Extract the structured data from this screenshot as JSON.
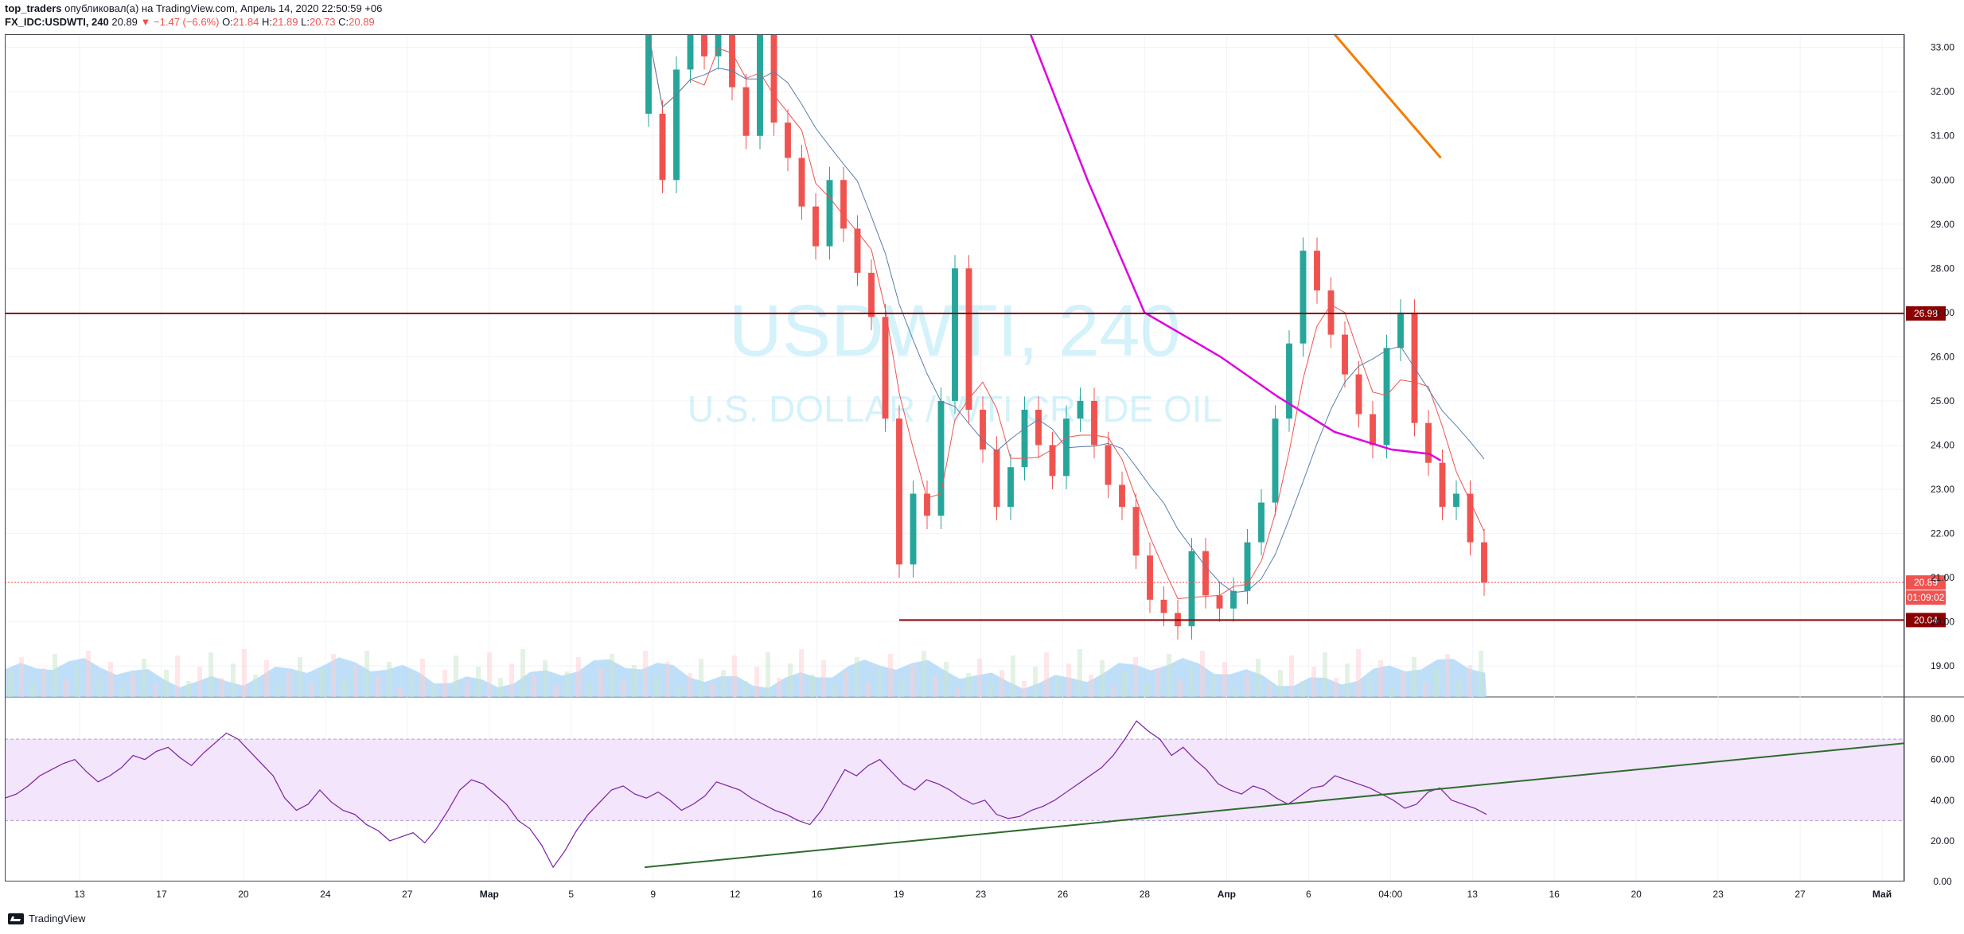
{
  "header": {
    "author": "top_traders",
    "published": "опубликовал(а) на TradingView.com, Апрель 14, 2020 22:50:59 +06",
    "symbol": "FX_IDC:USDWTI, 240",
    "last": "20.89",
    "arrow": "▼",
    "change": "−1.47 (−6.6%)",
    "o_label": "O:",
    "o_val": "21.84",
    "h_label": "H:",
    "h_val": "21.89",
    "l_label": "L:",
    "l_val": "20.73",
    "c_label": "C:",
    "c_val": "20.89"
  },
  "watermark": {
    "title": "USDWTI, 240",
    "subtitle": "U.S. DOLLAR / WTI CRUDE OIL"
  },
  "footer": {
    "brand": "TradingView"
  },
  "colors": {
    "up": "#26a69a",
    "down": "#ef5350",
    "level": "#8b0000",
    "magenta_ma": "#e000e0",
    "blue_ma": "#5b7fa8",
    "red_ma": "#ef5350",
    "orange_line": "#f57c00",
    "trend": "#2e6b2e",
    "rsi": "#7b1fa2",
    "rsi_band": "#f3e5fc",
    "volume_area": "#a9d4f5"
  },
  "chart_data": [
    {
      "type": "candlestick",
      "symbol": "FX_IDC:USDWTI",
      "interval": "240",
      "ylim": [
        18.3,
        33.3
      ],
      "y_ticks": [
        "19.00",
        "20.00",
        "21.00",
        "22.00",
        "23.00",
        "24.00",
        "25.00",
        "26.00",
        "27.00",
        "28.00",
        "29.00",
        "30.00",
        "31.00",
        "32.00",
        "33.00"
      ],
      "x_tick_labels": [
        "13",
        "17",
        "20",
        "24",
        "27",
        "Мар",
        "5",
        "9",
        "12",
        "16",
        "19",
        "23",
        "26",
        "28",
        "Апр",
        "6",
        "04:00",
        "13",
        "16",
        "20",
        "23",
        "27",
        "Май"
      ],
      "candles_close_path": [
        [
          31.5,
          33.3
        ],
        [
          31.5,
          30.0
        ],
        [
          30.0,
          32.5
        ],
        [
          32.5,
          33.3
        ],
        [
          33.3,
          32.8
        ],
        [
          32.8,
          33.3
        ],
        [
          33.3,
          32.1
        ],
        [
          32.1,
          31.0
        ],
        [
          31.0,
          33.3
        ],
        [
          33.3,
          31.3
        ],
        [
          31.3,
          30.5
        ],
        [
          30.5,
          29.4
        ],
        [
          29.4,
          28.5
        ],
        [
          28.5,
          30.0
        ],
        [
          30.0,
          28.9
        ],
        [
          28.9,
          27.9
        ],
        [
          27.9,
          26.9
        ],
        [
          26.9,
          24.6
        ],
        [
          24.6,
          21.3
        ],
        [
          21.3,
          22.9
        ],
        [
          22.9,
          22.4
        ],
        [
          22.4,
          25.0
        ],
        [
          25.0,
          28.0
        ],
        [
          28.0,
          24.8
        ],
        [
          24.8,
          23.9
        ],
        [
          23.9,
          22.6
        ],
        [
          22.6,
          23.5
        ],
        [
          23.5,
          24.8
        ],
        [
          24.8,
          24.0
        ],
        [
          24.0,
          23.3
        ],
        [
          23.3,
          24.6
        ],
        [
          24.6,
          25.0
        ],
        [
          25.0,
          24.0
        ],
        [
          24.0,
          23.1
        ],
        [
          23.1,
          22.6
        ],
        [
          22.6,
          21.5
        ],
        [
          21.5,
          20.5
        ],
        [
          20.5,
          20.2
        ],
        [
          20.2,
          19.9
        ],
        [
          19.9,
          21.6
        ],
        [
          21.6,
          20.6
        ],
        [
          20.6,
          20.3
        ],
        [
          20.3,
          20.7
        ],
        [
          20.7,
          21.8
        ],
        [
          21.8,
          22.7
        ],
        [
          22.7,
          24.6
        ],
        [
          24.6,
          26.3
        ],
        [
          26.3,
          28.4
        ],
        [
          28.4,
          27.5
        ],
        [
          27.5,
          26.5
        ],
        [
          26.5,
          25.6
        ],
        [
          25.6,
          24.7
        ],
        [
          24.7,
          24.0
        ],
        [
          24.0,
          26.2
        ],
        [
          26.2,
          27.0
        ],
        [
          27.0,
          24.5
        ],
        [
          24.5,
          23.6
        ],
        [
          23.6,
          22.6
        ],
        [
          22.6,
          22.9
        ],
        [
          22.9,
          21.8
        ],
        [
          21.8,
          20.89
        ]
      ],
      "levels": [
        {
          "value": 26.98,
          "label": "26.98"
        },
        {
          "value": 20.04,
          "label": "20.04"
        },
        {
          "value": 20.89,
          "label": "20.89",
          "timer": "01:09:02"
        }
      ],
      "moving_averages": [
        {
          "color": "magenta",
          "points": [
            [
              33.3,
              0.54
            ],
            [
              30.0,
              0.57
            ],
            [
              27.0,
              0.6
            ],
            [
              26.0,
              0.64
            ],
            [
              25.1,
              0.67
            ],
            [
              24.3,
              0.7
            ],
            [
              23.9,
              0.73
            ],
            [
              23.8,
              0.75
            ],
            [
              23.65,
              0.756
            ]
          ]
        },
        {
          "color": "orange",
          "points": [
            [
              33.3,
              0.7
            ],
            [
              30.5,
              0.756
            ]
          ]
        }
      ]
    },
    {
      "type": "line",
      "name": "RSI",
      "ylim": [
        0,
        90
      ],
      "y_ticks": [
        "0.00",
        "20.00",
        "40.00",
        "60.00",
        "80.00"
      ],
      "bands": [
        30,
        70
      ],
      "values": [
        41,
        43,
        47,
        52,
        55,
        58,
        60,
        54,
        49,
        52,
        56,
        62,
        60,
        64,
        66,
        61,
        57,
        63,
        68,
        73,
        70,
        64,
        58,
        52,
        41,
        35,
        38,
        45,
        39,
        35,
        33,
        28,
        25,
        20,
        22,
        24,
        19,
        26,
        35,
        45,
        50,
        48,
        43,
        38,
        30,
        26,
        18,
        7,
        15,
        25,
        33,
        39,
        45,
        47,
        43,
        41,
        44,
        40,
        35,
        38,
        42,
        49,
        47,
        45,
        41,
        38,
        35,
        33,
        30,
        28,
        35,
        45,
        55,
        52,
        57,
        60,
        54,
        48,
        45,
        50,
        48,
        45,
        41,
        38,
        40,
        33,
        31,
        32,
        35,
        37,
        40,
        44,
        48,
        52,
        56,
        62,
        70,
        79,
        74,
        70,
        62,
        66,
        60,
        55,
        48,
        45,
        43,
        47,
        45,
        41,
        38,
        42,
        46,
        47,
        52,
        50,
        48,
        46,
        43,
        40,
        36,
        38,
        44,
        46,
        40,
        38,
        36,
        33
      ],
      "trendline": [
        [
          0,
          7
        ],
        [
          1,
          68
        ]
      ]
    }
  ]
}
